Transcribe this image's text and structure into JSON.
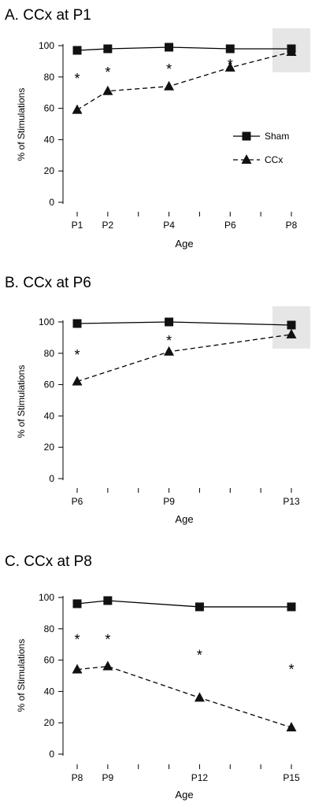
{
  "chart_data": [
    {
      "type": "line",
      "title": "A. CCx at P1",
      "xlabel": "Age",
      "ylabel": "% of Stimulations",
      "ylim": [
        0,
        100
      ],
      "yticks": [
        0,
        20,
        40,
        60,
        80,
        100
      ],
      "x_ticks": [
        1,
        2,
        3,
        4,
        5,
        6,
        7,
        8
      ],
      "x_tick_labels": [
        {
          "x": 1,
          "label": "P1"
        },
        {
          "x": 2,
          "label": "P2"
        },
        {
          "x": 4,
          "label": "P4"
        },
        {
          "x": 6,
          "label": "P6"
        },
        {
          "x": 8,
          "label": "P8"
        }
      ],
      "xlim": [
        1,
        8
      ],
      "legend": "right",
      "highlight_x": 8,
      "series": [
        {
          "name": "Sham",
          "marker": "square",
          "dash": false,
          "points": [
            {
              "x": 1,
              "y": 97
            },
            {
              "x": 2,
              "y": 98
            },
            {
              "x": 4,
              "y": 99
            },
            {
              "x": 6,
              "y": 98
            },
            {
              "x": 8,
              "y": 98
            }
          ]
        },
        {
          "name": "CCx",
          "marker": "triangle",
          "dash": true,
          "points": [
            {
              "x": 1,
              "y": 59
            },
            {
              "x": 2,
              "y": 71
            },
            {
              "x": 4,
              "y": 74
            },
            {
              "x": 6,
              "y": 86
            },
            {
              "x": 8,
              "y": 96
            }
          ]
        }
      ],
      "significance": [
        {
          "x": 1,
          "y": 80,
          "text": "*"
        },
        {
          "x": 2,
          "y": 84,
          "text": "*"
        },
        {
          "x": 4,
          "y": 86,
          "text": "*"
        },
        {
          "x": 6,
          "y": 89,
          "text": "*"
        }
      ]
    },
    {
      "type": "line",
      "title": "B. CCx at P6",
      "xlabel": "Age",
      "ylabel": "% of Stimulations",
      "ylim": [
        0,
        100
      ],
      "yticks": [
        0,
        20,
        40,
        60,
        80,
        100
      ],
      "x_ticks": [
        6,
        7,
        8,
        9,
        10,
        11,
        12,
        13
      ],
      "x_tick_labels": [
        {
          "x": 6,
          "label": "P6"
        },
        {
          "x": 9,
          "label": "P9"
        },
        {
          "x": 13,
          "label": "P13"
        }
      ],
      "xlim": [
        6,
        13
      ],
      "highlight_x": 13,
      "series": [
        {
          "name": "Sham",
          "marker": "square",
          "dash": false,
          "points": [
            {
              "x": 6,
              "y": 99
            },
            {
              "x": 9,
              "y": 100
            },
            {
              "x": 13,
              "y": 98
            }
          ]
        },
        {
          "name": "CCx",
          "marker": "triangle",
          "dash": true,
          "points": [
            {
              "x": 6,
              "y": 62
            },
            {
              "x": 9,
              "y": 81
            },
            {
              "x": 13,
              "y": 92
            }
          ]
        }
      ],
      "significance": [
        {
          "x": 6,
          "y": 80,
          "text": "*"
        },
        {
          "x": 9,
          "y": 89,
          "text": "*"
        }
      ]
    },
    {
      "type": "line",
      "title": "C. CCx at P8",
      "xlabel": "Age",
      "ylabel": "% of Stimulations",
      "ylim": [
        0,
        100
      ],
      "yticks": [
        0,
        20,
        40,
        60,
        80,
        100
      ],
      "x_ticks": [
        8,
        9,
        10,
        11,
        12,
        13,
        14,
        15
      ],
      "x_tick_labels": [
        {
          "x": 8,
          "label": "P8"
        },
        {
          "x": 9,
          "label": "P9"
        },
        {
          "x": 12,
          "label": "P12"
        },
        {
          "x": 15,
          "label": "P15"
        }
      ],
      "xlim": [
        8,
        15
      ],
      "series": [
        {
          "name": "Sham",
          "marker": "square",
          "dash": false,
          "points": [
            {
              "x": 8,
              "y": 96
            },
            {
              "x": 9,
              "y": 98
            },
            {
              "x": 12,
              "y": 94
            },
            {
              "x": 15,
              "y": 94
            }
          ]
        },
        {
          "name": "CCx",
          "marker": "triangle",
          "dash": true,
          "points": [
            {
              "x": 8,
              "y": 54
            },
            {
              "x": 9,
              "y": 56
            },
            {
              "x": 12,
              "y": 36
            },
            {
              "x": 15,
              "y": 17
            }
          ]
        }
      ],
      "significance": [
        {
          "x": 8,
          "y": 74,
          "text": "*"
        },
        {
          "x": 9,
          "y": 74,
          "text": "*"
        },
        {
          "x": 12,
          "y": 64,
          "text": "*"
        },
        {
          "x": 15,
          "y": 55,
          "text": "*"
        }
      ]
    }
  ]
}
